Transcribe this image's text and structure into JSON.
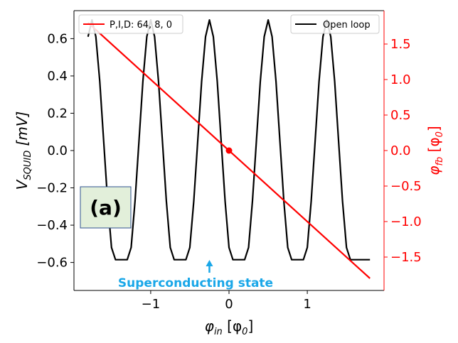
{
  "chart_data": {
    "type": "line",
    "xlabel_main": "φ",
    "xlabel_sub": "in",
    "xlabel_tail": " [φ",
    "xlabel_tail_sub": "0",
    "xlabel_end": "]",
    "ylabel_left_main": "V",
    "ylabel_left_sub": "SQUID",
    "ylabel_left_tail": " [mV]",
    "ylabel_right_main": "φ",
    "ylabel_right_sub": "fb",
    "ylabel_right_tail": " [φ",
    "ylabel_right_tail_sub": "0",
    "ylabel_right_end": "]",
    "xlim": [
      -1.98,
      1.98
    ],
    "ylim_left": [
      -0.75,
      0.75
    ],
    "ylim_right": [
      -1.97,
      1.97
    ],
    "x_ticks": [
      -1,
      0,
      1
    ],
    "x_tick_labels": [
      "−1",
      "0",
      "1"
    ],
    "y_left_ticks": [
      0.6,
      0.4,
      0.2,
      0.0,
      -0.2,
      -0.4,
      -0.6
    ],
    "y_left_tick_labels": [
      "0.6",
      "0.4",
      "0.2",
      "0.0",
      "−0.2",
      "−0.4",
      "−0.6"
    ],
    "y_right_ticks": [
      1.5,
      1.0,
      0.5,
      0.0,
      -0.5,
      -1.0,
      -1.5
    ],
    "y_right_tick_labels": [
      "1.5",
      "1.0",
      "0.5",
      "0.0",
      "−0.5",
      "−1.0",
      "−1.5"
    ],
    "series": [
      {
        "name": "Open loop",
        "color": "#000000",
        "axis": "left",
        "x": [
          -1.8,
          -1.75,
          -1.7,
          -1.65,
          -1.6,
          -1.55,
          -1.5,
          -1.45,
          -1.4,
          -1.35,
          -1.3,
          -1.25,
          -1.2,
          -1.15,
          -1.1,
          -1.05,
          -1.0,
          -0.95,
          -0.9,
          -0.85,
          -0.8,
          -0.75,
          -0.7,
          -0.65,
          -0.6,
          -0.55,
          -0.5,
          -0.45,
          -0.4,
          -0.35,
          -0.3,
          -0.25,
          -0.2,
          -0.15,
          -0.1,
          -0.05,
          0.0,
          0.05,
          0.1,
          0.15,
          0.2,
          0.25,
          0.3,
          0.35,
          0.4,
          0.45,
          0.5,
          0.55,
          0.6,
          0.65,
          0.7,
          0.75,
          0.8,
          0.85,
          0.9,
          0.95,
          1.0,
          1.05,
          1.1,
          1.15,
          1.2,
          1.25,
          1.3,
          1.35,
          1.4,
          1.45,
          1.5,
          1.55,
          1.6,
          1.65,
          1.7,
          1.75,
          1.8
        ],
        "y": [
          0.61,
          0.7,
          0.61,
          0.37,
          0.05,
          -0.27,
          -0.52,
          -0.585,
          -0.585,
          -0.585,
          -0.585,
          -0.52,
          -0.27,
          0.05,
          0.37,
          0.61,
          0.7,
          0.61,
          0.37,
          0.05,
          -0.27,
          -0.52,
          -0.585,
          -0.585,
          -0.585,
          -0.585,
          -0.52,
          -0.27,
          0.05,
          0.37,
          0.61,
          0.7,
          0.61,
          0.37,
          0.05,
          -0.27,
          -0.52,
          -0.585,
          -0.585,
          -0.585,
          -0.585,
          -0.52,
          -0.27,
          0.05,
          0.37,
          0.61,
          0.7,
          0.61,
          0.37,
          0.05,
          -0.27,
          -0.52,
          -0.585,
          -0.585,
          -0.585,
          -0.585,
          -0.52,
          -0.27,
          0.05,
          0.37,
          0.61,
          0.7,
          0.61,
          0.37,
          0.05,
          -0.27,
          -0.52,
          -0.585,
          -0.585,
          -0.585,
          -0.585,
          -0.585,
          -0.585
        ]
      },
      {
        "name": "P,I,D: 64, 8, 0",
        "color": "#ff0000",
        "axis": "right",
        "x": [
          -1.8,
          1.8
        ],
        "y": [
          1.8,
          -1.8
        ]
      }
    ],
    "marker_point": {
      "x": 0.0,
      "y": 0.0,
      "color": "#ff0000"
    },
    "legend_left": {
      "position": "upper-left",
      "label_ref": "P,I,D: 64, 8, 0"
    },
    "legend_right": {
      "position": "upper-right",
      "label_ref": "Open loop"
    },
    "annotation": {
      "text": "Superconducting state",
      "color": "#1aa7e8",
      "arrow_x": -0.25
    },
    "panel_label": {
      "text": "(a)",
      "fill": "#e2efda",
      "border": "#2f528f"
    },
    "right_axis_color": "#ff0000"
  }
}
